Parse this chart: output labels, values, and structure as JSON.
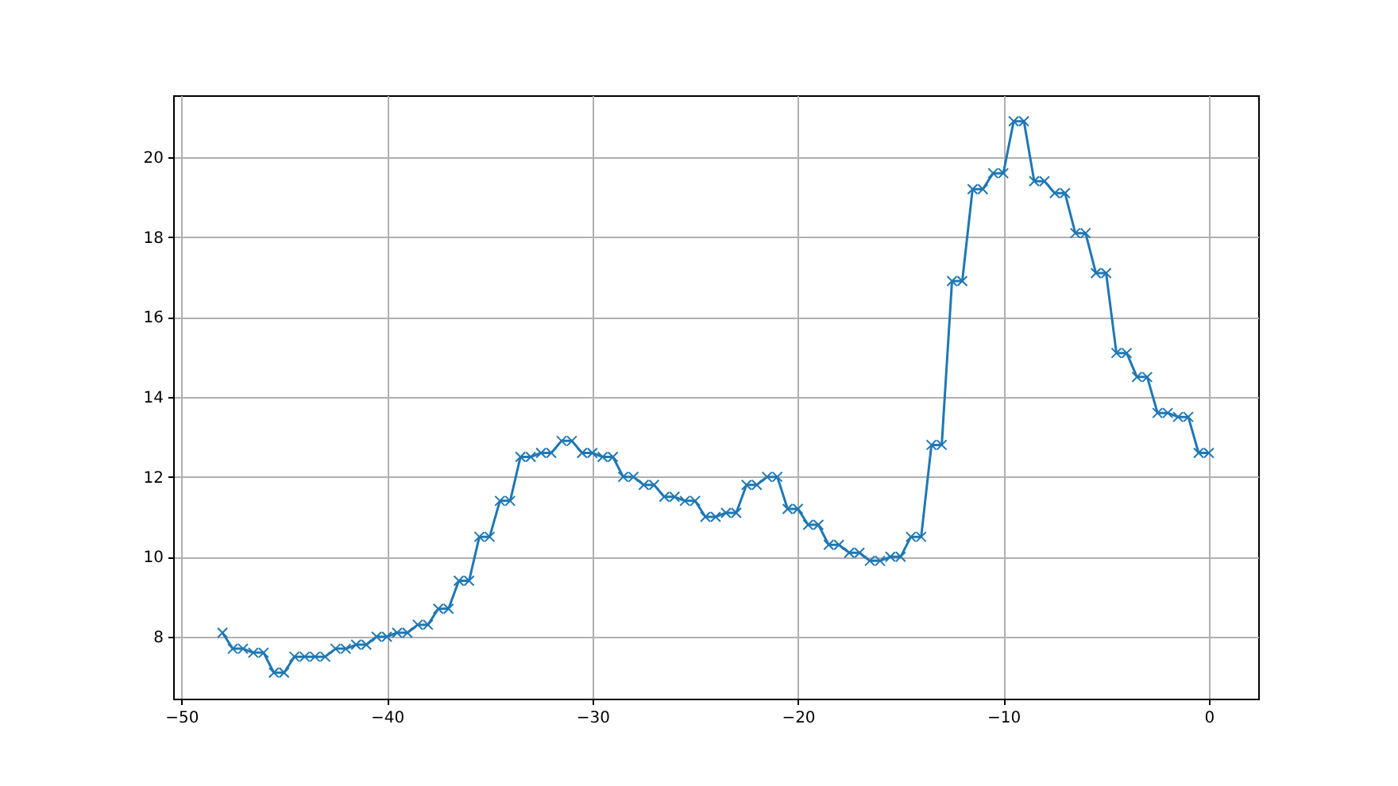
{
  "chart_data": {
    "type": "line",
    "x": [
      -48,
      -47.5,
      -47,
      -46.5,
      -46,
      -45.5,
      -45,
      -44.5,
      -44,
      -43.5,
      -43,
      -42.5,
      -42,
      -41.5,
      -41,
      -40.5,
      -40,
      -39.5,
      -39,
      -38.5,
      -38,
      -37.5,
      -37,
      -36.5,
      -36,
      -35.5,
      -35,
      -34.5,
      -34,
      -33.5,
      -33,
      -32.5,
      -32,
      -31.5,
      -31,
      -30.5,
      -30,
      -29.5,
      -29,
      -28.5,
      -28,
      -27.5,
      -27,
      -26.5,
      -26,
      -25.5,
      -25,
      -24.5,
      -24,
      -23.5,
      -23,
      -22.5,
      -22,
      -21.5,
      -21,
      -20.5,
      -20,
      -19.5,
      -19,
      -18.5,
      -18,
      -17.5,
      -17,
      -16.5,
      -16,
      -15.5,
      -15,
      -14.5,
      -14,
      -13.5,
      -13,
      -12.5,
      -12,
      -11.5,
      -11,
      -10.5,
      -10,
      -9.5,
      -9,
      -8.5,
      -8,
      -7.5,
      -7,
      -6.5,
      -6,
      -5.5,
      -5,
      -4.5,
      -4,
      -3.5,
      -3,
      -2.5,
      -2,
      -1.5,
      -1,
      -0.5,
      0
    ],
    "series": [
      {
        "color": "#1f77b4",
        "values": [
          8.1,
          7.7,
          7.7,
          7.6,
          7.6,
          7.1,
          7.1,
          7.5,
          7.5,
          7.5,
          7.5,
          7.7,
          7.7,
          7.8,
          7.8,
          8.0,
          8.0,
          8.1,
          8.1,
          8.3,
          8.3,
          8.7,
          8.7,
          9.4,
          9.4,
          10.5,
          10.5,
          11.4,
          11.4,
          12.5,
          12.5,
          12.6,
          12.6,
          12.9,
          12.9,
          12.6,
          12.6,
          12.5,
          12.5,
          12.0,
          12.0,
          11.8,
          11.8,
          11.5,
          11.5,
          11.4,
          11.4,
          11.0,
          11.0,
          11.1,
          11.1,
          11.8,
          11.8,
          12.0,
          12.0,
          11.2,
          11.2,
          10.8,
          10.8,
          10.3,
          10.3,
          10.1,
          10.1,
          9.9,
          9.9,
          10.0,
          10.0,
          10.5,
          10.5,
          12.8,
          12.8,
          16.9,
          16.9,
          19.2,
          19.2,
          19.6,
          19.6,
          20.9,
          20.9,
          19.4,
          19.4,
          19.1,
          19.1,
          18.1,
          18.1,
          17.1,
          17.1,
          15.1,
          15.1,
          14.5,
          14.5,
          13.6,
          13.6,
          13.5,
          13.5,
          12.6,
          12.6
        ]
      }
    ],
    "xlim": [
      -50.4,
      2.4
    ],
    "xticks": [
      -50,
      -40,
      -30,
      -20,
      -10,
      0
    ],
    "ylim": [
      6.45,
      21.55
    ],
    "yticks": [
      8,
      10,
      12,
      14,
      16,
      18,
      20
    ],
    "grid": true,
    "marker": "cross",
    "line_style": "solid"
  }
}
